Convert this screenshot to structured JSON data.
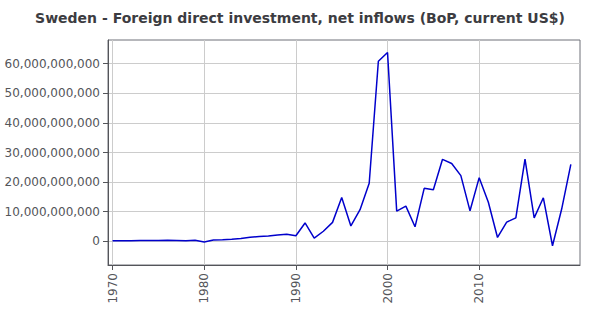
{
  "chart_data": {
    "type": "line",
    "title": "Sweden - Foreign direct investment, net inflows (BoP, current US$)",
    "x": [
      1970,
      1971,
      1972,
      1973,
      1974,
      1975,
      1976,
      1977,
      1978,
      1979,
      1980,
      1981,
      1982,
      1983,
      1984,
      1985,
      1986,
      1987,
      1988,
      1989,
      1990,
      1991,
      1992,
      1993,
      1994,
      1995,
      1996,
      1997,
      1998,
      1999,
      2000,
      2001,
      2002,
      2003,
      2004,
      2005,
      2006,
      2007,
      2008,
      2009,
      2010,
      2011,
      2012,
      2013,
      2014,
      2015,
      2016,
      2017,
      2018,
      2019,
      2020
    ],
    "values": [
      200000000,
      190000000,
      210000000,
      250000000,
      280000000,
      300000000,
      320000000,
      260000000,
      200000000,
      350000000,
      -200000000,
      450000000,
      550000000,
      700000000,
      950000000,
      1400000000,
      1600000000,
      1800000000,
      2100000000,
      2400000000,
      1900000000,
      6200000000,
      1100000000,
      3400000000,
      6400000000,
      14800000000,
      5200000000,
      10700000000,
      19600000000,
      60800000000,
      63800000000,
      10200000000,
      11900000000,
      4900000000,
      17900000000,
      17400000000,
      27700000000,
      26300000000,
      22200000000,
      10300000000,
      21500000000,
      13200000000,
      1300000000,
      6500000000,
      7900000000,
      27800000000,
      7900000000,
      14700000000,
      -1500000000,
      10900000000,
      26000000000
    ],
    "color": "#0000cc",
    "xlim": [
      1969.5,
      2021
    ],
    "ylim": [
      -8000000000,
      68000000000
    ],
    "xticks": [
      1970,
      1980,
      1990,
      2000,
      2010
    ],
    "yticks": [
      0,
      {
        "value": 10000000000,
        "label": "10,000,000,000"
      },
      {
        "value": 20000000000,
        "label": "20,000,000,000"
      },
      {
        "value": 30000000000,
        "label": "30,000,000,000"
      },
      {
        "value": 40000000000,
        "label": "40,000,000,000"
      },
      {
        "value": 50000000000,
        "label": "50,000,000,000"
      },
      {
        "value": 60000000000,
        "label": "60,000,000,000"
      }
    ],
    "grid": true
  }
}
